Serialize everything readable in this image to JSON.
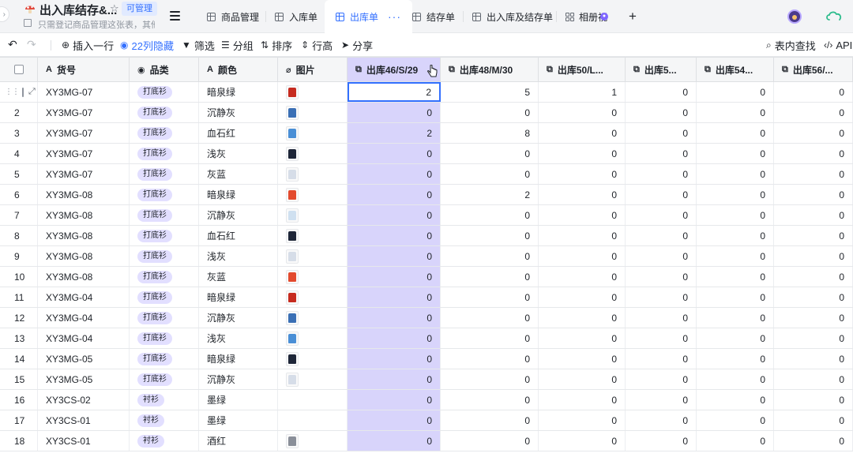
{
  "app": {
    "title": "出入库结存&...",
    "permission": "可管理",
    "description": "只需登记商品管理这张表，其他...",
    "logo_color": "#e0463a"
  },
  "tabs": [
    {
      "label": "商品管理",
      "icon": "table-icon",
      "active": false
    },
    {
      "label": "入库单",
      "icon": "table-icon",
      "active": false
    },
    {
      "label": "出库单",
      "icon": "table-icon",
      "active": true,
      "more": "···"
    },
    {
      "label": "结存单",
      "icon": "table-icon",
      "active": false
    },
    {
      "label": "出入库及结存单",
      "icon": "table-icon",
      "active": false
    },
    {
      "label": "相册视",
      "icon": "gallery-icon",
      "active": false
    }
  ],
  "toolbar": {
    "insert_row": "插入一行",
    "hidden_cols": "22列隐藏",
    "filter": "筛选",
    "group": "分组",
    "sort": "排序",
    "row_height": "行高",
    "share": "分享",
    "find": "表内查找",
    "api": "API"
  },
  "columns": [
    {
      "label": "货号",
      "icon": "text-field-icon"
    },
    {
      "label": "品类",
      "icon": "single-select-icon"
    },
    {
      "label": "颜色",
      "icon": "text-field-icon"
    },
    {
      "label": "图片",
      "icon": "attachment-icon"
    },
    {
      "label": "出库46/S/29",
      "icon": "lookup-icon"
    },
    {
      "label": "出库48/M/30",
      "icon": "lookup-icon"
    },
    {
      "label": "出库50/L...",
      "icon": "lookup-icon"
    },
    {
      "label": "出库5...",
      "icon": "lookup-icon"
    },
    {
      "label": "出库54...",
      "icon": "lookup-icon"
    },
    {
      "label": "出库56/...",
      "icon": "lookup-icon"
    }
  ],
  "rows": [
    {
      "n": "1",
      "sku": "XY3MG-07",
      "cat": "打底衫",
      "color": "暗泉绿",
      "img": "#c62b1f",
      "v": [
        "2",
        "5",
        "1",
        "0",
        "0",
        "0"
      ]
    },
    {
      "n": "2",
      "sku": "XY3MG-07",
      "cat": "打底衫",
      "color": "沉静灰",
      "img": "#3a6fb5",
      "v": [
        "0",
        "0",
        "0",
        "0",
        "0",
        "0"
      ]
    },
    {
      "n": "3",
      "sku": "XY3MG-07",
      "cat": "打底衫",
      "color": "血石红",
      "img": "#4a8fd6",
      "v": [
        "2",
        "8",
        "0",
        "0",
        "0",
        "0"
      ]
    },
    {
      "n": "4",
      "sku": "XY3MG-07",
      "cat": "打底衫",
      "color": "浅灰",
      "img": "#1e2638",
      "v": [
        "0",
        "0",
        "0",
        "0",
        "0",
        "0"
      ]
    },
    {
      "n": "5",
      "sku": "XY3MG-07",
      "cat": "打底衫",
      "color": "灰蓝",
      "img": "#d6dde8",
      "v": [
        "0",
        "0",
        "0",
        "0",
        "0",
        "0"
      ]
    },
    {
      "n": "6",
      "sku": "XY3MG-08",
      "cat": "打底衫",
      "color": "暗泉绿",
      "img": "#e34a2e",
      "v": [
        "0",
        "2",
        "0",
        "0",
        "0",
        "0"
      ]
    },
    {
      "n": "7",
      "sku": "XY3MG-08",
      "cat": "打底衫",
      "color": "沉静灰",
      "img": "#cfe0f0",
      "v": [
        "0",
        "0",
        "0",
        "0",
        "0",
        "0"
      ]
    },
    {
      "n": "8",
      "sku": "XY3MG-08",
      "cat": "打底衫",
      "color": "血石红",
      "img": "#1e2638",
      "v": [
        "0",
        "0",
        "0",
        "0",
        "0",
        "0"
      ]
    },
    {
      "n": "9",
      "sku": "XY3MG-08",
      "cat": "打底衫",
      "color": "浅灰",
      "img": "#d6dde8",
      "v": [
        "0",
        "0",
        "0",
        "0",
        "0",
        "0"
      ]
    },
    {
      "n": "10",
      "sku": "XY3MG-08",
      "cat": "打底衫",
      "color": "灰蓝",
      "img": "#e34a2e",
      "v": [
        "0",
        "0",
        "0",
        "0",
        "0",
        "0"
      ]
    },
    {
      "n": "11",
      "sku": "XY3MG-04",
      "cat": "打底衫",
      "color": "暗泉绿",
      "img": "#c62b1f",
      "v": [
        "0",
        "0",
        "0",
        "0",
        "0",
        "0"
      ]
    },
    {
      "n": "12",
      "sku": "XY3MG-04",
      "cat": "打底衫",
      "color": "沉静灰",
      "img": "#3a6fb5",
      "v": [
        "0",
        "0",
        "0",
        "0",
        "0",
        "0"
      ]
    },
    {
      "n": "13",
      "sku": "XY3MG-04",
      "cat": "打底衫",
      "color": "浅灰",
      "img": "#4a8fd6",
      "v": [
        "0",
        "0",
        "0",
        "0",
        "0",
        "0"
      ]
    },
    {
      "n": "14",
      "sku": "XY3MG-05",
      "cat": "打底衫",
      "color": "暗泉绿",
      "img": "#1e2638",
      "v": [
        "0",
        "0",
        "0",
        "0",
        "0",
        "0"
      ]
    },
    {
      "n": "15",
      "sku": "XY3MG-05",
      "cat": "打底衫",
      "color": "沉静灰",
      "img": "#d6dde8",
      "v": [
        "0",
        "0",
        "0",
        "0",
        "0",
        "0"
      ]
    },
    {
      "n": "16",
      "sku": "XY3CS-02",
      "cat": "衬衫",
      "color": "墨绿",
      "img": "",
      "v": [
        "0",
        "0",
        "0",
        "0",
        "0",
        "0"
      ]
    },
    {
      "n": "17",
      "sku": "XY3CS-01",
      "cat": "衬衫",
      "color": "墨绿",
      "img": "",
      "v": [
        "0",
        "0",
        "0",
        "0",
        "0",
        "0"
      ]
    },
    {
      "n": "18",
      "sku": "XY3CS-01",
      "cat": "衬衫",
      "color": "酒红",
      "img": "#8a8f99",
      "v": [
        "0",
        "0",
        "0",
        "0",
        "0",
        "0"
      ]
    }
  ],
  "colors": {
    "accent": "#3370ff",
    "selected_column": "#d8d4fb",
    "pill_bg": "#e2dfff"
  }
}
